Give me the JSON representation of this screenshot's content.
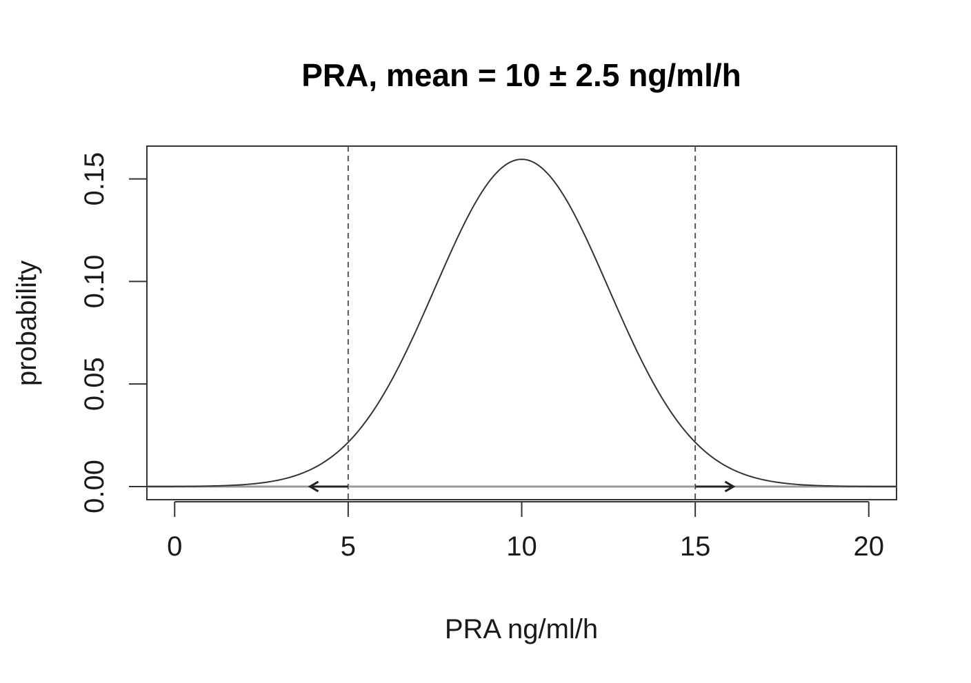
{
  "chart_data": {
    "type": "line",
    "title": "PRA, mean = 10 ± 2.5 ng/ml/h",
    "xlabel": "PRA ng/ml/h",
    "ylabel": "probability",
    "xlim": [
      -0.8,
      20.8
    ],
    "ylim": [
      -0.0064,
      0.166
    ],
    "x_ticks": [
      0,
      5,
      10,
      15,
      20
    ],
    "y_ticks": [
      0.0,
      0.05,
      0.1,
      0.15
    ],
    "x_tick_labels": [
      "0",
      "5",
      "10",
      "15",
      "20"
    ],
    "y_tick_labels": [
      "0.00",
      "0.05",
      "0.10",
      "0.15"
    ],
    "grid": false,
    "legend": "none",
    "series": [
      {
        "distribution": "normal",
        "mean": 10,
        "sd": 2.5,
        "x_range": [
          -0.8,
          20.8
        ],
        "color": "#333333"
      }
    ],
    "reference_lines": [
      {
        "x": 5,
        "style": "dashed",
        "color": "#555555"
      },
      {
        "x": 15,
        "style": "dashed",
        "color": "#555555"
      }
    ],
    "annotations": [
      {
        "type": "arrow",
        "from_x": 5,
        "to_x": 3.9,
        "y": 0
      },
      {
        "type": "arrow",
        "from_x": 15,
        "to_x": 16.1,
        "y": 0
      }
    ],
    "baseline": {
      "y": 0,
      "color": "#999999"
    },
    "colors": {
      "curve": "#333333",
      "frame": "#333333",
      "reference": "#555555",
      "baseline": "#999999",
      "arrow": "#222222"
    }
  }
}
